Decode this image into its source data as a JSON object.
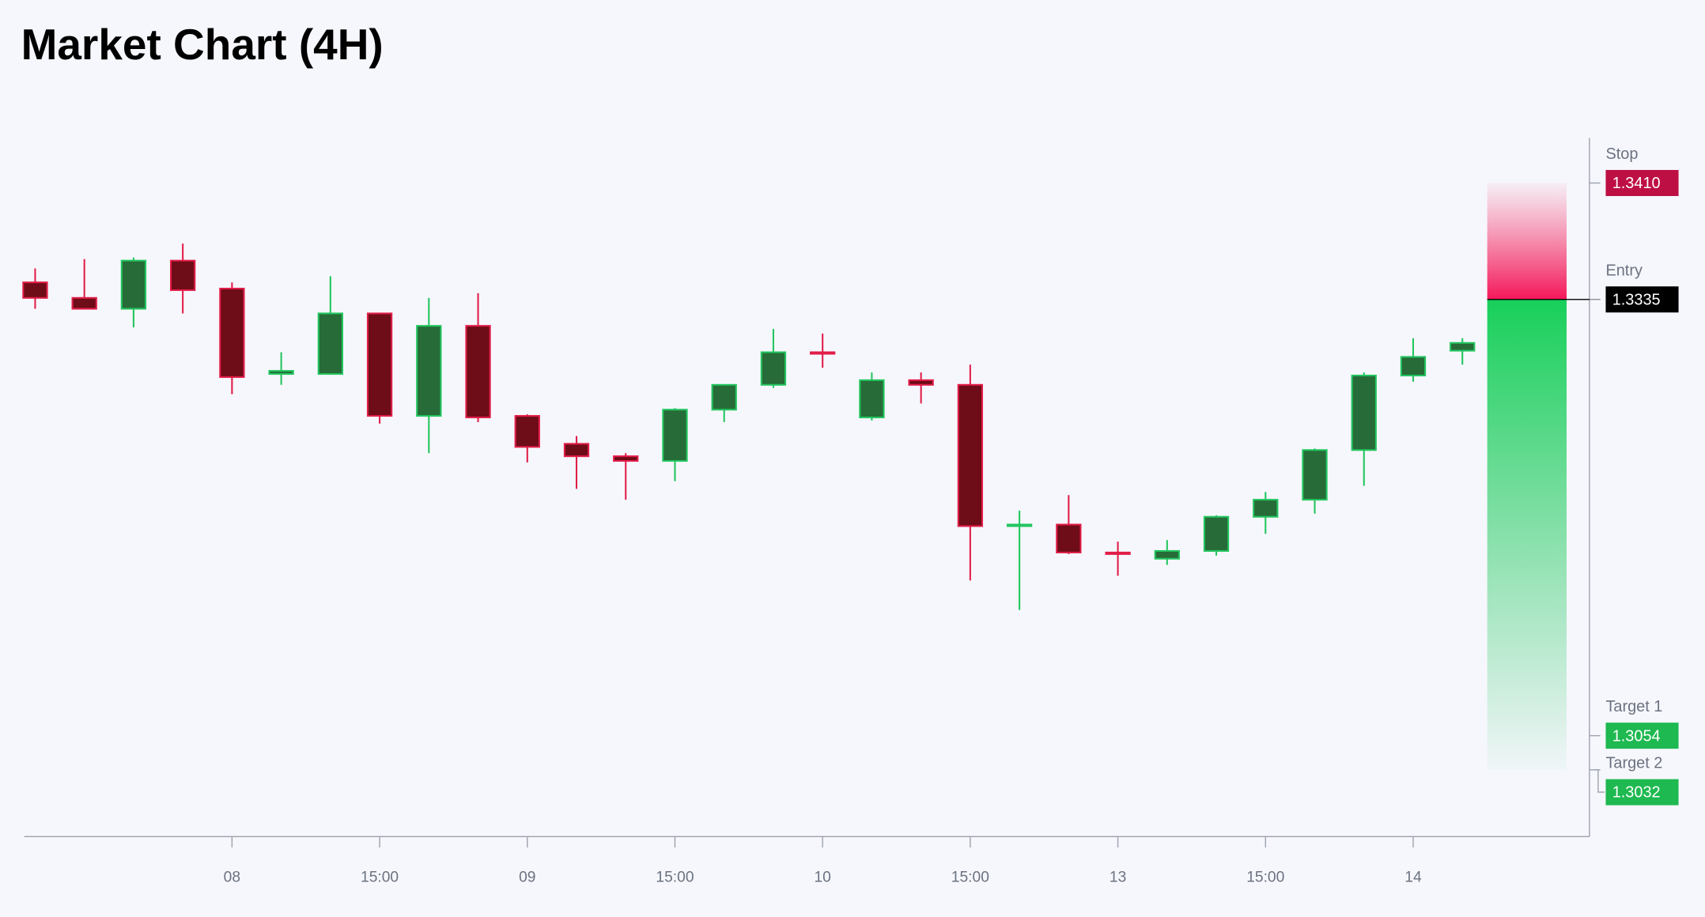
{
  "chart_data": {
    "type": "candlestick",
    "title": "Market Chart (4H)",
    "categories": [
      null,
      null,
      null,
      null,
      "08",
      null,
      null,
      "15:00",
      null,
      null,
      "09",
      null,
      null,
      "15:00",
      null,
      null,
      "10",
      null,
      null,
      "15:00",
      null,
      null,
      "13",
      null,
      null,
      "15:00",
      null,
      null,
      "14",
      null
    ],
    "open": [
      1.3346,
      1.3336,
      1.3329,
      1.336,
      1.3342,
      1.3287,
      1.3287,
      1.3326,
      1.326,
      1.3318,
      1.326,
      1.3242,
      1.3234,
      1.3231,
      1.3264,
      1.328,
      1.3301,
      1.3259,
      1.3283,
      1.328,
      1.3189,
      1.319,
      1.3172,
      1.3168,
      1.3173,
      1.3195,
      1.3206,
      1.3238,
      1.3286,
      1.3302
    ],
    "high": [
      1.3355,
      1.3361,
      1.3362,
      1.3371,
      1.3346,
      1.3301,
      1.335,
      1.3326,
      1.3336,
      1.3339,
      1.3261,
      1.3247,
      1.3236,
      1.3265,
      1.328,
      1.3316,
      1.3313,
      1.3288,
      1.3288,
      1.3293,
      1.3199,
      1.3209,
      1.3179,
      1.318,
      1.3196,
      1.3211,
      1.3239,
      1.3288,
      1.331,
      1.331
    ],
    "low": [
      1.3329,
      1.3329,
      1.3317,
      1.3326,
      1.3274,
      1.328,
      1.3287,
      1.3255,
      1.3236,
      1.3256,
      1.323,
      1.3213,
      1.3206,
      1.3218,
      1.3256,
      1.3278,
      1.3291,
      1.3257,
      1.3268,
      1.3154,
      1.3135,
      1.3171,
      1.3157,
      1.3164,
      1.317,
      1.3184,
      1.3197,
      1.3215,
      1.3282,
      1.3293
    ],
    "close": [
      1.3336,
      1.3329,
      1.336,
      1.3341,
      1.3285,
      1.3289,
      1.3326,
      1.326,
      1.3318,
      1.3259,
      1.324,
      1.3234,
      1.3231,
      1.3264,
      1.328,
      1.3301,
      1.33,
      1.3283,
      1.328,
      1.3189,
      1.319,
      1.3172,
      1.3171,
      1.3173,
      1.3195,
      1.3206,
      1.3238,
      1.3286,
      1.3298,
      1.3307
    ],
    "up_color": "#22c55e",
    "up_fill": "#276b38",
    "down_color": "#e11d48",
    "down_fill": "#6e0c17",
    "ylim": [
      1.2989,
      1.3439
    ],
    "levels": [
      {
        "name": "Stop",
        "value": 1.341,
        "label": "1.3410",
        "color": "#be0f45"
      },
      {
        "name": "Entry",
        "value": 1.3335,
        "label": "1.3335",
        "color": "#000000"
      },
      {
        "name": "Target 1",
        "value": 1.3054,
        "label": "1.3054",
        "color": "#1eb950"
      },
      {
        "name": "Target 2",
        "value": 1.3032,
        "label": "1.3032",
        "color": "#1eb950"
      }
    ]
  }
}
